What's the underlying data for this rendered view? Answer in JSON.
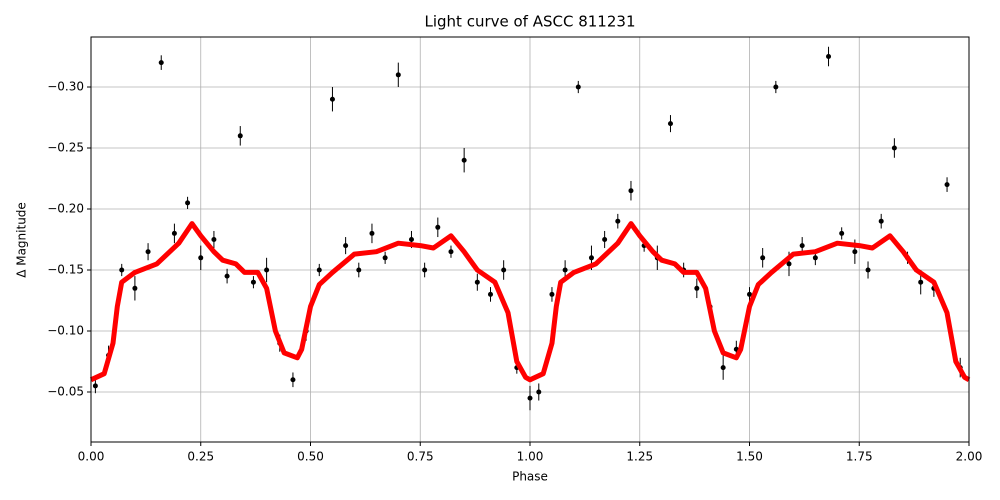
{
  "chart_data": {
    "type": "scatter",
    "title": "Light curve of ASCC 811231",
    "x_label": "Phase",
    "y_label": "Δ Magnitude",
    "xlim": [
      0,
      2
    ],
    "ylim": [
      -0.341,
      -0.009
    ],
    "y_inverted": true,
    "grid": true,
    "xticks": [
      {
        "value": 0,
        "label": "0.00"
      },
      {
        "value": 0.25,
        "label": "0.25"
      },
      {
        "value": 0.5,
        "label": "0.50"
      },
      {
        "value": 0.75,
        "label": "0.75"
      },
      {
        "value": 1,
        "label": "1.00"
      },
      {
        "value": 1.25,
        "label": "1.25"
      },
      {
        "value": 1.5,
        "label": "1.50"
      },
      {
        "value": 1.75,
        "label": "1.75"
      },
      {
        "value": 2,
        "label": "2.00"
      }
    ],
    "yticks": [
      {
        "value": -0.3,
        "label": "−0.30"
      },
      {
        "value": -0.25,
        "label": "−0.25"
      },
      {
        "value": -0.2,
        "label": "−0.20"
      },
      {
        "value": -0.15,
        "label": "−0.15"
      },
      {
        "value": -0.1,
        "label": "−0.10"
      },
      {
        "value": -0.05,
        "label": "−0.05"
      }
    ],
    "points": {
      "color": "#000000",
      "x": [
        0.01,
        0.04,
        0.07,
        0.1,
        0.13,
        0.16,
        0.19,
        0.22,
        0.25,
        0.28,
        0.31,
        0.34,
        0.37,
        0.4,
        0.43,
        0.46,
        0.49,
        0.52,
        0.55,
        0.58,
        0.61,
        0.64,
        0.67,
        0.7,
        0.73,
        0.76,
        0.79,
        0.82,
        0.85,
        0.88,
        0.91,
        0.94,
        0.97,
        1.0,
        1.02,
        1.05,
        1.08,
        1.11,
        1.14,
        1.17,
        1.2,
        1.23,
        1.26,
        1.29,
        1.32,
        1.35,
        1.38,
        1.41,
        1.44,
        1.47,
        1.5,
        1.53,
        1.56,
        1.59,
        1.62,
        1.65,
        1.68,
        1.71,
        1.74,
        1.77,
        1.8,
        1.83,
        1.86,
        1.89,
        1.92,
        1.95,
        1.98
      ],
      "values": [
        -0.055,
        -0.08,
        -0.15,
        -0.135,
        -0.165,
        -0.32,
        -0.18,
        -0.205,
        -0.16,
        -0.175,
        -0.145,
        -0.26,
        -0.14,
        -0.15,
        -0.09,
        -0.06,
        -0.1,
        -0.15,
        -0.29,
        -0.17,
        -0.15,
        -0.18,
        -0.16,
        -0.31,
        -0.175,
        -0.15,
        -0.185,
        -0.165,
        -0.24,
        -0.14,
        -0.13,
        -0.15,
        -0.07,
        -0.045,
        -0.05,
        -0.13,
        -0.15,
        -0.3,
        -0.16,
        -0.175,
        -0.19,
        -0.215,
        -0.17,
        -0.16,
        -0.27,
        -0.15,
        -0.135,
        -0.12,
        -0.07,
        -0.085,
        -0.13,
        -0.16,
        -0.3,
        -0.155,
        -0.17,
        -0.16,
        -0.325,
        -0.18,
        -0.165,
        -0.15,
        -0.19,
        -0.25,
        -0.16,
        -0.14,
        -0.135,
        -0.22,
        -0.07
      ],
      "errors": [
        0.006,
        0.008,
        0.005,
        0.01,
        0.007,
        0.006,
        0.008,
        0.005,
        0.01,
        0.007,
        0.006,
        0.008,
        0.005,
        0.01,
        0.007,
        0.006,
        0.008,
        0.005,
        0.01,
        0.007,
        0.006,
        0.008,
        0.005,
        0.01,
        0.007,
        0.006,
        0.008,
        0.005,
        0.01,
        0.007,
        0.006,
        0.008,
        0.005,
        0.01,
        0.007,
        0.006,
        0.008,
        0.005,
        0.01,
        0.007,
        0.006,
        0.008,
        0.005,
        0.01,
        0.007,
        0.006,
        0.008,
        0.005,
        0.01,
        0.007,
        0.006,
        0.008,
        0.005,
        0.01,
        0.007,
        0.006,
        0.008,
        0.005,
        0.01,
        0.007,
        0.006,
        0.008,
        0.005,
        0.01,
        0.007,
        0.006,
        0.008
      ]
    },
    "curve": {
      "color": "#ff0000",
      "x": [
        0.0,
        0.03,
        0.05,
        0.06,
        0.07,
        0.1,
        0.15,
        0.2,
        0.23,
        0.25,
        0.28,
        0.3,
        0.33,
        0.35,
        0.38,
        0.4,
        0.42,
        0.44,
        0.47,
        0.48,
        0.5,
        0.52,
        0.55,
        0.6,
        0.65,
        0.7,
        0.75,
        0.78,
        0.82,
        0.85,
        0.88,
        0.92,
        0.95,
        0.97,
        0.99,
        1.0,
        1.03,
        1.05,
        1.06,
        1.07,
        1.1,
        1.15,
        1.2,
        1.23,
        1.25,
        1.28,
        1.3,
        1.33,
        1.35,
        1.38,
        1.4,
        1.42,
        1.44,
        1.47,
        1.48,
        1.5,
        1.52,
        1.55,
        1.6,
        1.65,
        1.7,
        1.75,
        1.78,
        1.82,
        1.85,
        1.88,
        1.92,
        1.95,
        1.97,
        1.99,
        2.0
      ],
      "values": [
        -0.06,
        -0.065,
        -0.09,
        -0.12,
        -0.14,
        -0.148,
        -0.155,
        -0.172,
        -0.188,
        -0.178,
        -0.165,
        -0.158,
        -0.155,
        -0.148,
        -0.148,
        -0.135,
        -0.1,
        -0.082,
        -0.078,
        -0.085,
        -0.12,
        -0.138,
        -0.148,
        -0.163,
        -0.165,
        -0.172,
        -0.17,
        -0.168,
        -0.178,
        -0.165,
        -0.15,
        -0.14,
        -0.115,
        -0.075,
        -0.062,
        -0.06,
        -0.065,
        -0.09,
        -0.12,
        -0.14,
        -0.148,
        -0.155,
        -0.172,
        -0.188,
        -0.178,
        -0.165,
        -0.158,
        -0.155,
        -0.148,
        -0.148,
        -0.135,
        -0.1,
        -0.082,
        -0.078,
        -0.085,
        -0.12,
        -0.138,
        -0.148,
        -0.163,
        -0.165,
        -0.172,
        -0.17,
        -0.168,
        -0.178,
        -0.165,
        -0.15,
        -0.14,
        -0.115,
        -0.075,
        -0.062,
        -0.06
      ]
    }
  }
}
